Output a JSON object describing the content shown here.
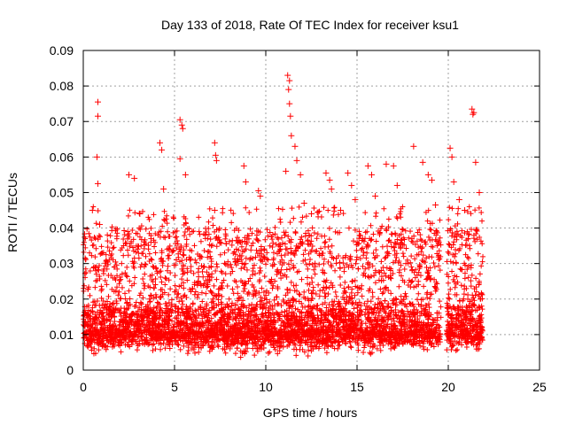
{
  "chart_data": {
    "type": "scatter",
    "title": "Day 133 of 2018, Rate Of TEC Index for receiver ksu1",
    "xlabel": "GPS time / hours",
    "ylabel": "ROTI / TECUs",
    "xlim": [
      0,
      25
    ],
    "ylim": [
      0,
      0.09
    ],
    "xticks": [
      0,
      5,
      10,
      15,
      20,
      25
    ],
    "yticks": [
      0,
      0.01,
      0.02,
      0.03,
      0.04,
      0.05,
      0.06,
      0.07,
      0.08,
      0.09
    ],
    "grid": true,
    "marker": "+",
    "color": "#ff0000",
    "data_gap_hours": [
      19.6,
      19.9
    ],
    "data_end_hour": 21.9,
    "series": [
      {
        "name": "ROTI",
        "points": [
          [
            0.8,
            0.0755
          ],
          [
            0.8,
            0.0715
          ],
          [
            0.75,
            0.06
          ],
          [
            0.8,
            0.0525
          ],
          [
            0.5,
            0.045
          ],
          [
            0.9,
            0.041
          ],
          [
            2.5,
            0.055
          ],
          [
            2.8,
            0.054
          ],
          [
            3.1,
            0.044
          ],
          [
            4.2,
            0.064
          ],
          [
            4.3,
            0.062
          ],
          [
            4.4,
            0.051
          ],
          [
            5.3,
            0.0705
          ],
          [
            5.4,
            0.069
          ],
          [
            5.45,
            0.068
          ],
          [
            5.3,
            0.0595
          ],
          [
            5.6,
            0.055
          ],
          [
            7.2,
            0.064
          ],
          [
            7.25,
            0.0605
          ],
          [
            7.3,
            0.059
          ],
          [
            7.2,
            0.045
          ],
          [
            8.8,
            0.0575
          ],
          [
            8.9,
            0.053
          ],
          [
            9.6,
            0.0505
          ],
          [
            9.7,
            0.049
          ],
          [
            11.2,
            0.083
          ],
          [
            11.3,
            0.0815
          ],
          [
            11.25,
            0.079
          ],
          [
            11.3,
            0.075
          ],
          [
            11.35,
            0.0715
          ],
          [
            11.4,
            0.066
          ],
          [
            11.6,
            0.063
          ],
          [
            11.7,
            0.059
          ],
          [
            11.9,
            0.055
          ],
          [
            11.1,
            0.056
          ],
          [
            12.1,
            0.047
          ],
          [
            12.5,
            0.044
          ],
          [
            13.3,
            0.0555
          ],
          [
            13.5,
            0.0535
          ],
          [
            13.6,
            0.051
          ],
          [
            14.1,
            0.045
          ],
          [
            14.5,
            0.0555
          ],
          [
            14.7,
            0.052
          ],
          [
            14.9,
            0.048
          ],
          [
            15.6,
            0.0575
          ],
          [
            15.8,
            0.055
          ],
          [
            16.0,
            0.049
          ],
          [
            16.6,
            0.058
          ],
          [
            17.0,
            0.0575
          ],
          [
            17.2,
            0.052
          ],
          [
            18.1,
            0.063
          ],
          [
            18.6,
            0.0585
          ],
          [
            18.9,
            0.055
          ],
          [
            19.1,
            0.0535
          ],
          [
            19.3,
            0.0465
          ],
          [
            20.1,
            0.0625
          ],
          [
            20.2,
            0.06
          ],
          [
            20.3,
            0.053
          ],
          [
            20.6,
            0.048
          ],
          [
            20.9,
            0.045
          ],
          [
            21.3,
            0.0735
          ],
          [
            21.35,
            0.072
          ],
          [
            21.4,
            0.0725
          ],
          [
            21.5,
            0.0585
          ],
          [
            21.7,
            0.05
          ]
        ]
      }
    ]
  }
}
